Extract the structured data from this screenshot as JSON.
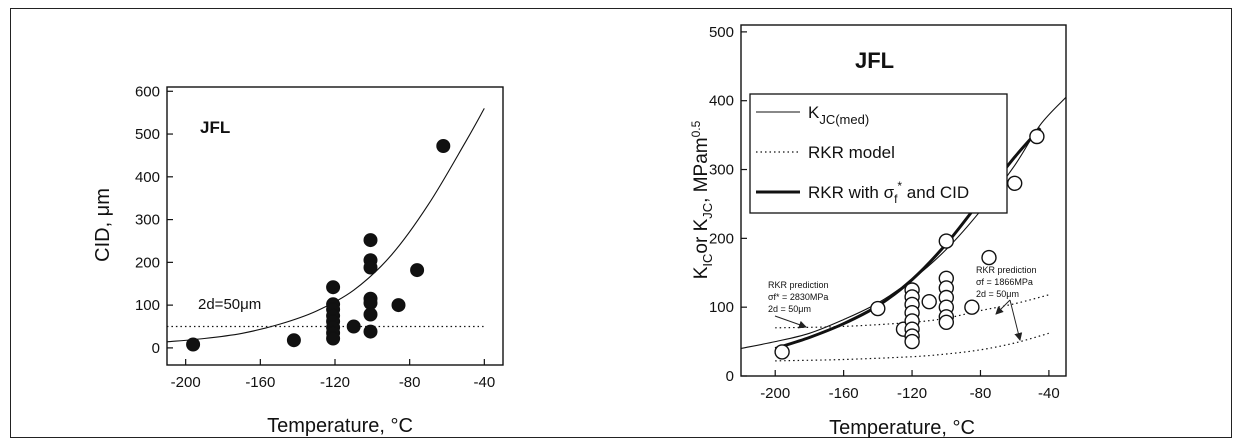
{
  "chart_data": [
    {
      "type": "scatter",
      "title": "",
      "label": "JFL",
      "xlabel": "Temperature, °C",
      "ylabel": "CID, μm",
      "xlim": [
        -210,
        -30
      ],
      "ylim": [
        -40,
        610
      ],
      "xticks": [
        -200,
        -160,
        -120,
        -80,
        -40
      ],
      "yticks": [
        0,
        100,
        200,
        300,
        400,
        500,
        600
      ],
      "grid": false,
      "annotation": "2d=50μm",
      "series": [
        {
          "marker": "filled-circle",
          "points": [
            [
              -196,
              8
            ],
            [
              -142,
              18
            ],
            [
              -121,
              142
            ],
            [
              -121,
              102
            ],
            [
              -121,
              90
            ],
            [
              -121,
              75
            ],
            [
              -121,
              62
            ],
            [
              -121,
              48
            ],
            [
              -121,
              35
            ],
            [
              -121,
              22
            ],
            [
              -110,
              50
            ],
            [
              -101,
              252
            ],
            [
              -101,
              205
            ],
            [
              -101,
              188
            ],
            [
              -101,
              115
            ],
            [
              -101,
              105
            ],
            [
              -101,
              78
            ],
            [
              -101,
              38
            ],
            [
              -86,
              100
            ],
            [
              -76,
              182
            ],
            [
              -62,
              472
            ]
          ]
        }
      ],
      "curves": [
        {
          "style": "solid",
          "points": [
            [
              -210,
              14
            ],
            [
              -190,
              22
            ],
            [
              -170,
              34
            ],
            [
              -150,
              55
            ],
            [
              -130,
              86
            ],
            [
              -110,
              135
            ],
            [
              -90,
              216
            ],
            [
              -70,
              335
            ],
            [
              -50,
              482
            ],
            [
              -40,
              560
            ]
          ]
        },
        {
          "style": "dotted",
          "points": [
            [
              -210,
              50
            ],
            [
              -40,
              50
            ]
          ]
        }
      ]
    },
    {
      "type": "scatter",
      "title": "",
      "label": "JFL",
      "xlabel": "Temperature, °C",
      "ylabel": "KIC or KJC, MPam0.5",
      "xlim": [
        -220,
        -30
      ],
      "ylim": [
        0,
        510
      ],
      "xticks": [
        -200,
        -160,
        -120,
        -80,
        -40
      ],
      "yticks": [
        0,
        100,
        200,
        300,
        400,
        500
      ],
      "grid": false,
      "legend": {
        "placement": "top-left",
        "entries": [
          {
            "label": "K",
            "sub": "JC(med)",
            "style": "thin"
          },
          {
            "label": "RKR model",
            "style": "dotted"
          },
          {
            "label": "RKR with σ",
            "sub": "f",
            "sup": "*",
            "tail": " and CID",
            "style": "thick"
          }
        ]
      },
      "annotations": [
        {
          "lines": [
            "RKR prediction",
            "σf* = 2830MPa",
            "2d = 50μm"
          ]
        },
        {
          "lines": [
            "RKR prediction",
            "σf = 1866MPa",
            "2d = 50μm"
          ]
        }
      ],
      "series": [
        {
          "marker": "open-circle",
          "points": [
            [
              -196,
              35
            ],
            [
              -140,
              98
            ],
            [
              -125,
              68
            ],
            [
              -120,
              125
            ],
            [
              -120,
              115
            ],
            [
              -120,
              104
            ],
            [
              -120,
              92
            ],
            [
              -120,
              80
            ],
            [
              -120,
              68
            ],
            [
              -120,
              58
            ],
            [
              -120,
              50
            ],
            [
              -110,
              108
            ],
            [
              -100,
              196
            ],
            [
              -100,
              142
            ],
            [
              -100,
              128
            ],
            [
              -100,
              114
            ],
            [
              -100,
              100
            ],
            [
              -100,
              86
            ],
            [
              -100,
              78
            ],
            [
              -85,
              100
            ],
            [
              -75,
              172
            ],
            [
              -60,
              280
            ],
            [
              -47,
              348
            ]
          ]
        }
      ],
      "curves": [
        {
          "style": "thin",
          "points": [
            [
              -220,
              40
            ],
            [
              -200,
              50
            ],
            [
              -180,
              62
            ],
            [
              -160,
              82
            ],
            [
              -140,
              106
            ],
            [
              -120,
              140
            ],
            [
              -100,
              184
            ],
            [
              -80,
              240
            ],
            [
              -60,
              306
            ],
            [
              -45,
              365
            ],
            [
              -30,
              405
            ]
          ]
        },
        {
          "style": "thick",
          "points": [
            [
              -200,
              40
            ],
            [
              -180,
              56
            ],
            [
              -160,
              76
            ],
            [
              -140,
              102
            ],
            [
              -120,
              140
            ],
            [
              -100,
              192
            ],
            [
              -80,
              255
            ],
            [
              -60,
              318
            ],
            [
              -45,
              360
            ]
          ]
        },
        {
          "style": "dotted",
          "points": [
            [
              -200,
              70
            ],
            [
              -160,
              72
            ],
            [
              -120,
              78
            ],
            [
              -100,
              84
            ],
            [
              -80,
              95
            ],
            [
              -60,
              105
            ],
            [
              -40,
              118
            ]
          ]
        },
        {
          "style": "dotted",
          "points": [
            [
              -200,
              22
            ],
            [
              -160,
              24
            ],
            [
              -120,
              28
            ],
            [
              -100,
              32
            ],
            [
              -80,
              38
            ],
            [
              -60,
              48
            ],
            [
              -40,
              62
            ]
          ]
        }
      ]
    }
  ]
}
